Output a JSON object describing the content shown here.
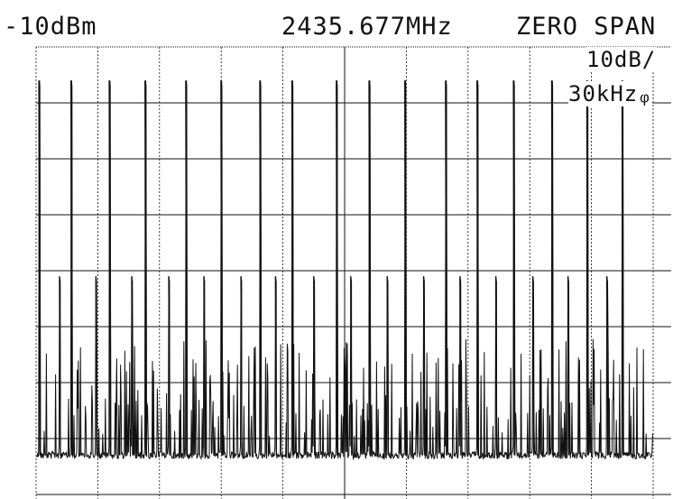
{
  "header": {
    "ref_level": "-10dBm",
    "center_freq": "2435.677MHz",
    "span": "ZERO SPAN"
  },
  "scale": {
    "per_division": "10dB/",
    "rbw": "30kHzᵩ"
  },
  "display": {
    "background": "#ffffff",
    "trace_color": "#111111",
    "grid_color": "#111111",
    "graticule": "10 x 8 divisions",
    "trace": "zero-span time-domain trace with periodic pulse bursts"
  },
  "chart_data": {
    "type": "line",
    "title": "",
    "xlabel": "",
    "ylabel": "",
    "x_divisions": 10,
    "y_divisions": 8,
    "db_per_div": 10,
    "ref_level_dbm": -10,
    "ylim": [
      -90,
      -10
    ],
    "noise_floor_dbm": -83,
    "tall_peaks": [
      {
        "div": 0.05,
        "dbm": -16
      },
      {
        "div": 0.57,
        "dbm": -16
      },
      {
        "div": 1.19,
        "dbm": -16
      },
      {
        "div": 1.77,
        "dbm": -16
      },
      {
        "div": 2.43,
        "dbm": -16
      },
      {
        "div": 3.0,
        "dbm": -16
      },
      {
        "div": 3.63,
        "dbm": -16
      },
      {
        "div": 4.15,
        "dbm": -16
      },
      {
        "div": 4.87,
        "dbm": -16
      },
      {
        "div": 5.4,
        "dbm": -16
      },
      {
        "div": 5.98,
        "dbm": -16
      },
      {
        "div": 6.64,
        "dbm": -16
      },
      {
        "div": 7.15,
        "dbm": -16
      },
      {
        "div": 7.74,
        "dbm": -16
      },
      {
        "div": 8.36,
        "dbm": -16
      },
      {
        "div": 8.93,
        "dbm": -16
      },
      {
        "div": 9.5,
        "dbm": -16
      }
    ],
    "mid_peaks": [
      {
        "div": 0.38,
        "dbm": -51
      },
      {
        "div": 0.97,
        "dbm": -51
      },
      {
        "div": 1.55,
        "dbm": -51
      },
      {
        "div": 2.15,
        "dbm": -51
      },
      {
        "div": 2.72,
        "dbm": -51
      },
      {
        "div": 3.32,
        "dbm": -51
      },
      {
        "div": 3.88,
        "dbm": -51
      },
      {
        "div": 4.5,
        "dbm": -51
      },
      {
        "div": 5.1,
        "dbm": -51
      },
      {
        "div": 5.69,
        "dbm": -51
      },
      {
        "div": 6.28,
        "dbm": -51
      },
      {
        "div": 6.87,
        "dbm": -51
      },
      {
        "div": 7.45,
        "dbm": -51
      },
      {
        "div": 8.05,
        "dbm": -51
      },
      {
        "div": 8.62,
        "dbm": -51
      },
      {
        "div": 9.25,
        "dbm": -51
      }
    ]
  }
}
